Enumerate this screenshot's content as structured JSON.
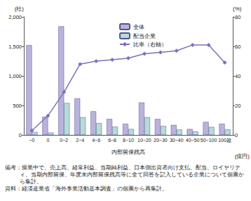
{
  "chart_data": {
    "type": "bar",
    "x_label": "内部留保残高",
    "x_unit": "(億円)",
    "y_label": "(社)",
    "y2_label": "(%)",
    "categories": [
      "~0",
      "0",
      "0~2",
      "2~4",
      "4~6",
      "6~8",
      "8~10",
      "10~20",
      "20~30",
      "30~40",
      "40~50",
      "50~100",
      "100超"
    ],
    "series": [
      {
        "name": "全体",
        "type": "bar",
        "color": "#b9b3dc",
        "values": [
          1520,
          310,
          1840,
          620,
          400,
          270,
          190,
          550,
          270,
          170,
          100,
          220,
          190
        ]
      },
      {
        "name": "配当企業",
        "type": "bar",
        "color": "#b3ddd5",
        "values": [
          50,
          40,
          540,
          300,
          200,
          140,
          100,
          300,
          150,
          90,
          60,
          135,
          95
        ]
      },
      {
        "name": "比率（右軸）",
        "type": "line",
        "axis": "y2",
        "color": "#7d72b8",
        "marker": "diamond",
        "values": [
          3,
          13,
          29,
          48,
          50,
          51,
          52,
          55,
          56,
          57,
          61,
          61,
          49
        ]
      }
    ],
    "ylim": [
      0,
      2000
    ],
    "yticks": [
      0,
      500,
      {
        "value": 1000,
        "label": "1,000"
      },
      {
        "value": 1500,
        "label": "1,500"
      },
      {
        "value": 2000,
        "label": "2,000"
      }
    ],
    "y2lim": [
      0,
      80
    ],
    "y2ticks": [
      0,
      20,
      40,
      60,
      80
    ],
    "grid": false,
    "legend": "top",
    "annotations": [
      "備考：操業中で、売上高、経常利益、当期純利益、日本側出資者向け支払、配当、ロイヤリティ、当期内部留保、年度末内部留保残高等に全て回答を記入している企業について個票から集計。",
      "資料：経済産業省「海外事業活動基本調査」の個票から再集計。"
    ]
  }
}
